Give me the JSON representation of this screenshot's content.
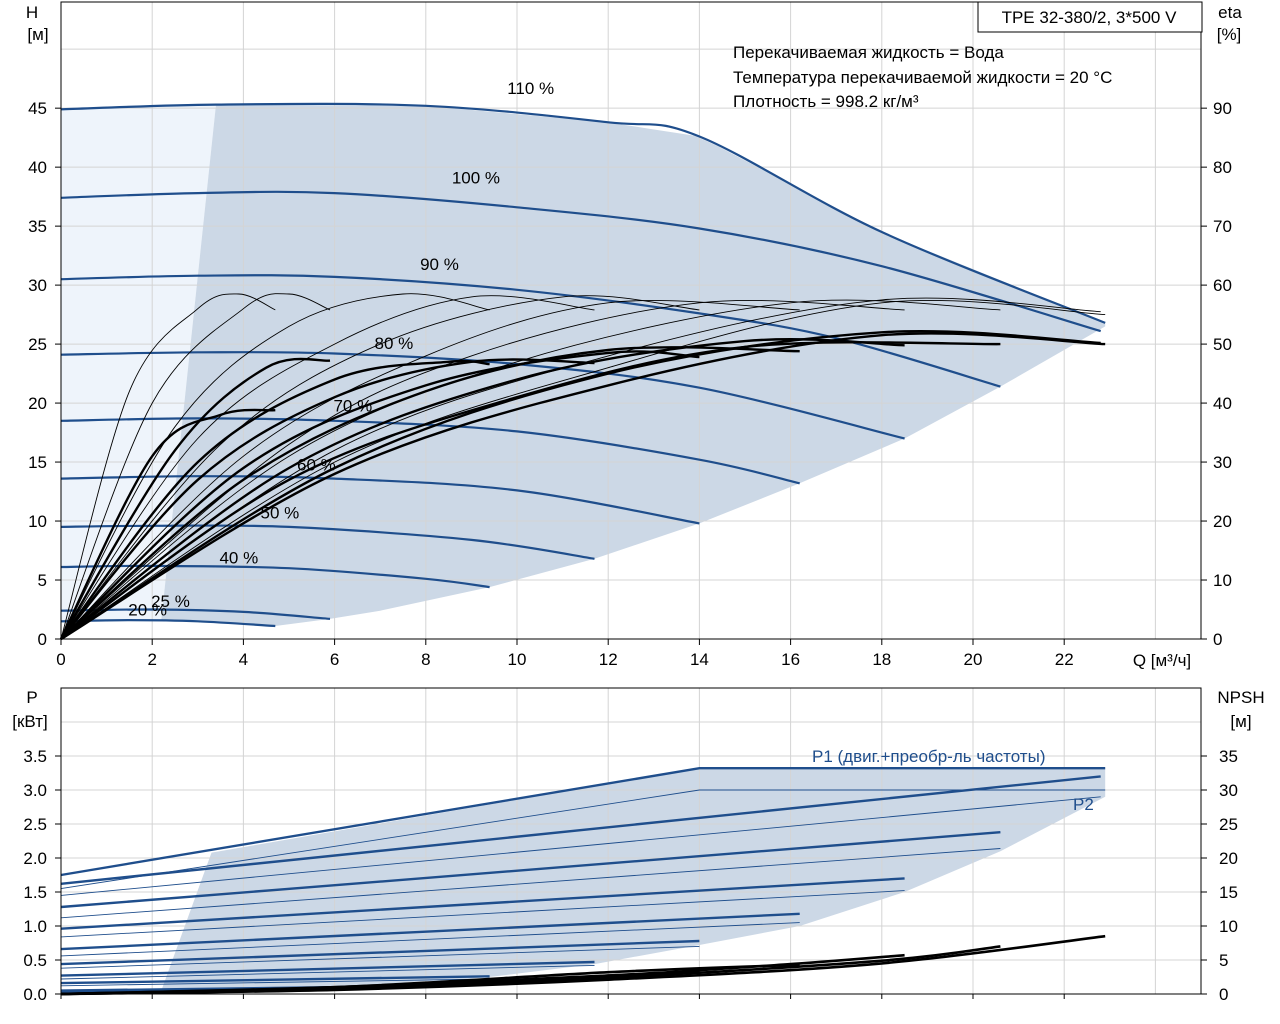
{
  "colors": {
    "region_fill": "#ccd8e6",
    "light_fill": "#eef4fb",
    "blue_curve": "#1f4e8c",
    "black_curve": "#000000",
    "grid": "#d4d4d4"
  },
  "chart_data": [
    {
      "type": "line",
      "title": "TPE 32-380/2, 3*500 V",
      "xlabel": "Q [м³/ч]",
      "ylabel_left": [
        "H",
        "[м]"
      ],
      "ylabel_right": [
        "eta",
        "[%]"
      ],
      "xlim": [
        0,
        25
      ],
      "ylim": [
        0,
        54
      ],
      "ylim_right": [
        0,
        108
      ],
      "xticks": [
        0,
        2,
        4,
        6,
        8,
        10,
        12,
        14,
        16,
        18,
        20,
        22
      ],
      "yticks_left": [
        0,
        5,
        10,
        15,
        20,
        25,
        30,
        35,
        40,
        45
      ],
      "yticks_right": [
        0,
        10,
        20,
        30,
        40,
        50,
        60,
        70,
        80,
        90
      ],
      "info_lines": [
        "Перекачиваемая жидкость = Вода",
        "Температура перекачиваемой жидкости = 20 °C",
        "Плотность = 998.2 кг/м³"
      ],
      "head_curves": [
        {
          "label": "110 %",
          "x": [
            0,
            3.4,
            8,
            12,
            14,
            18,
            22.9
          ],
          "y": [
            44.9,
            45.3,
            45.2,
            43.8,
            42.6,
            34.5,
            26.8
          ]
        },
        {
          "label": "100 %",
          "x": [
            0,
            3,
            6,
            10,
            14,
            18,
            22.8
          ],
          "y": [
            37.4,
            37.8,
            37.8,
            36.6,
            34.8,
            31.6,
            26.1
          ]
        },
        {
          "label": "90 %",
          "x": [
            0,
            3,
            6,
            10,
            14,
            17,
            20.6
          ],
          "y": [
            30.5,
            30.8,
            30.7,
            29.6,
            27.6,
            25.5,
            21.4
          ]
        },
        {
          "label": "80 %",
          "x": [
            0,
            3,
            6,
            10,
            14,
            18.5
          ],
          "y": [
            24.1,
            24.3,
            24.2,
            23.3,
            21.3,
            17.0
          ]
        },
        {
          "label": "70 %",
          "x": [
            0,
            3,
            6,
            10,
            14,
            16.2
          ],
          "y": [
            18.5,
            18.7,
            18.5,
            17.6,
            15.2,
            13.2
          ]
        },
        {
          "label": "60 %",
          "x": [
            0,
            3,
            6,
            10,
            14
          ],
          "y": [
            13.6,
            13.8,
            13.6,
            12.6,
            9.8
          ]
        },
        {
          "label": "50 %",
          "x": [
            0,
            2,
            5,
            9,
            11.7
          ],
          "y": [
            9.5,
            9.6,
            9.5,
            8.4,
            6.8
          ]
        },
        {
          "label": "40 %",
          "x": [
            0,
            2,
            5,
            8,
            9.4
          ],
          "y": [
            6.1,
            6.2,
            6.0,
            5.1,
            4.4
          ]
        },
        {
          "label": "25 %",
          "x": [
            0,
            2,
            4,
            5.9
          ],
          "y": [
            2.4,
            2.5,
            2.3,
            1.7
          ]
        },
        {
          "label": "20 %",
          "x": [
            0,
            1.5,
            3,
            4.7
          ],
          "y": [
            1.5,
            1.6,
            1.5,
            1.1
          ]
        }
      ],
      "eff_curves_thin": [
        {
          "x": [
            0,
            1.5,
            3,
            3.9,
            4.7
          ],
          "y": [
            0,
            42,
            56,
            58.5,
            55.8
          ]
        },
        {
          "x": [
            0,
            2,
            4,
            5,
            5.9
          ],
          "y": [
            0,
            40,
            56,
            58.5,
            55.8
          ]
        },
        {
          "x": [
            0,
            2.5,
            5,
            7.5,
            9.4
          ],
          "y": [
            0,
            36,
            53,
            58.5,
            55.8
          ]
        },
        {
          "x": [
            0,
            3,
            6,
            9,
            11.7
          ],
          "y": [
            0,
            34,
            50,
            58,
            55.8
          ]
        },
        {
          "x": [
            0,
            3.5,
            7,
            11,
            14
          ],
          "y": [
            0,
            33,
            50,
            58,
            55.8
          ]
        },
        {
          "x": [
            0,
            4,
            8,
            12,
            16.2
          ],
          "y": [
            0,
            31,
            48,
            57,
            55.8
          ]
        },
        {
          "x": [
            0,
            5,
            9,
            14,
            18.5
          ],
          "y": [
            0,
            33,
            48,
            57,
            55.8
          ]
        },
        {
          "x": [
            0,
            5,
            10,
            16,
            20.6
          ],
          "y": [
            0,
            31,
            47,
            57,
            55.8
          ]
        },
        {
          "x": [
            0,
            6,
            12,
            18,
            22.8
          ],
          "y": [
            0,
            32,
            48,
            57.5,
            55.5
          ]
        },
        {
          "x": [
            0,
            6,
            12,
            18,
            22.9
          ],
          "y": [
            0,
            30,
            46,
            57,
            55.0
          ]
        }
      ],
      "eff_curves_thick": [
        {
          "x": [
            0,
            2,
            3.5,
            4.7
          ],
          "y": [
            0,
            31,
            38,
            38.8
          ]
        },
        {
          "x": [
            0,
            2.5,
            4.5,
            5.9
          ],
          "y": [
            0,
            32,
            46,
            47.2
          ]
        },
        {
          "x": [
            0,
            3,
            6,
            8.5,
            9.4
          ],
          "y": [
            0,
            30,
            44,
            47,
            46.6
          ]
        },
        {
          "x": [
            0,
            3,
            6,
            9,
            11.7
          ],
          "y": [
            0,
            27,
            41,
            47,
            46.8
          ]
        },
        {
          "x": [
            0,
            4,
            8,
            12,
            14
          ],
          "y": [
            0,
            29,
            43,
            48.5,
            47.8
          ]
        },
        {
          "x": [
            0,
            4,
            8,
            12,
            16.2
          ],
          "y": [
            0,
            27,
            42,
            49,
            48.8
          ]
        },
        {
          "x": [
            0,
            5,
            10,
            15,
            18.5
          ],
          "y": [
            0,
            29,
            44,
            50.5,
            49.8
          ]
        },
        {
          "x": [
            0,
            5,
            10,
            15,
            20.6
          ],
          "y": [
            0,
            27,
            41,
            49.5,
            50.0
          ]
        },
        {
          "x": [
            0,
            6,
            12,
            18,
            22.8
          ],
          "y": [
            0,
            29,
            45,
            52,
            50.2
          ]
        },
        {
          "x": [
            0,
            6,
            12,
            18,
            22.9
          ],
          "y": [
            0,
            28,
            43,
            51.5,
            50.0
          ]
        }
      ]
    },
    {
      "type": "line",
      "xlabel": "",
      "ylabel_left": [
        "P",
        "[кВт]"
      ],
      "ylabel_right": [
        "NPSH",
        "[м]"
      ],
      "xlim": [
        0,
        25
      ],
      "ylim": [
        0,
        4.5
      ],
      "ylim_right": [
        0,
        45
      ],
      "yticks_left": [
        "0.0",
        "0.5",
        "1.0",
        "1.5",
        "2.0",
        "2.5",
        "3.0",
        "3.5"
      ],
      "yticks_right": [
        0,
        5,
        10,
        15,
        20,
        25,
        30,
        35
      ],
      "series_labels": {
        "p1": "P1 (двиг.+преобр-ль частоты)",
        "p2": "P2"
      },
      "p1_curves": [
        {
          "x": [
            0,
            14,
            22.9
          ],
          "y": [
            1.75,
            3.32,
            3.32
          ]
        },
        {
          "x": [
            0,
            22.8
          ],
          "y": [
            1.62,
            3.2
          ]
        },
        {
          "x": [
            0,
            20.6
          ],
          "y": [
            1.28,
            2.38
          ]
        },
        {
          "x": [
            0,
            18.5
          ],
          "y": [
            0.96,
            1.7
          ]
        },
        {
          "x": [
            0,
            16.2
          ],
          "y": [
            0.66,
            1.18
          ]
        },
        {
          "x": [
            0,
            14
          ],
          "y": [
            0.44,
            0.78
          ]
        },
        {
          "x": [
            0,
            11.7
          ],
          "y": [
            0.27,
            0.47
          ]
        },
        {
          "x": [
            0,
            9.4
          ],
          "y": [
            0.16,
            0.26
          ]
        },
        {
          "x": [
            0,
            5.9
          ],
          "y": [
            0.05,
            0.1
          ]
        },
        {
          "x": [
            0,
            4.7
          ],
          "y": [
            0.03,
            0.06
          ]
        }
      ],
      "p2_curves": [
        {
          "x": [
            0,
            14,
            22.9
          ],
          "y": [
            1.55,
            3.0,
            3.0
          ]
        },
        {
          "x": [
            0,
            22.8
          ],
          "y": [
            1.45,
            2.9
          ]
        },
        {
          "x": [
            0,
            20.6
          ],
          "y": [
            1.12,
            2.14
          ]
        },
        {
          "x": [
            0,
            18.5
          ],
          "y": [
            0.84,
            1.52
          ]
        },
        {
          "x": [
            0,
            16.2
          ],
          "y": [
            0.56,
            1.05
          ]
        },
        {
          "x": [
            0,
            14
          ],
          "y": [
            0.38,
            0.7
          ]
        },
        {
          "x": [
            0,
            11.7
          ],
          "y": [
            0.22,
            0.42
          ]
        },
        {
          "x": [
            0,
            9.4
          ],
          "y": [
            0.12,
            0.22
          ]
        }
      ],
      "npsh_curves": [
        {
          "x": [
            0,
            6,
            12,
            18,
            22.9
          ],
          "y": [
            0.0,
            0.6,
            2.1,
            4.5,
            8.5
          ]
        },
        {
          "x": [
            0,
            6,
            12,
            18,
            20.6
          ],
          "y": [
            0.0,
            0.7,
            2.4,
            4.9,
            7.0
          ]
        },
        {
          "x": [
            0,
            6,
            12,
            16,
            18.5
          ],
          "y": [
            0.0,
            0.8,
            2.7,
            4.4,
            5.7
          ]
        },
        {
          "x": [
            0,
            6,
            12,
            16.2
          ],
          "y": [
            0.0,
            1.0,
            3.2,
            4.3
          ]
        },
        {
          "x": [
            0,
            6,
            12,
            14
          ],
          "y": [
            0.0,
            1.0,
            2.7,
            3.3
          ]
        }
      ]
    }
  ]
}
